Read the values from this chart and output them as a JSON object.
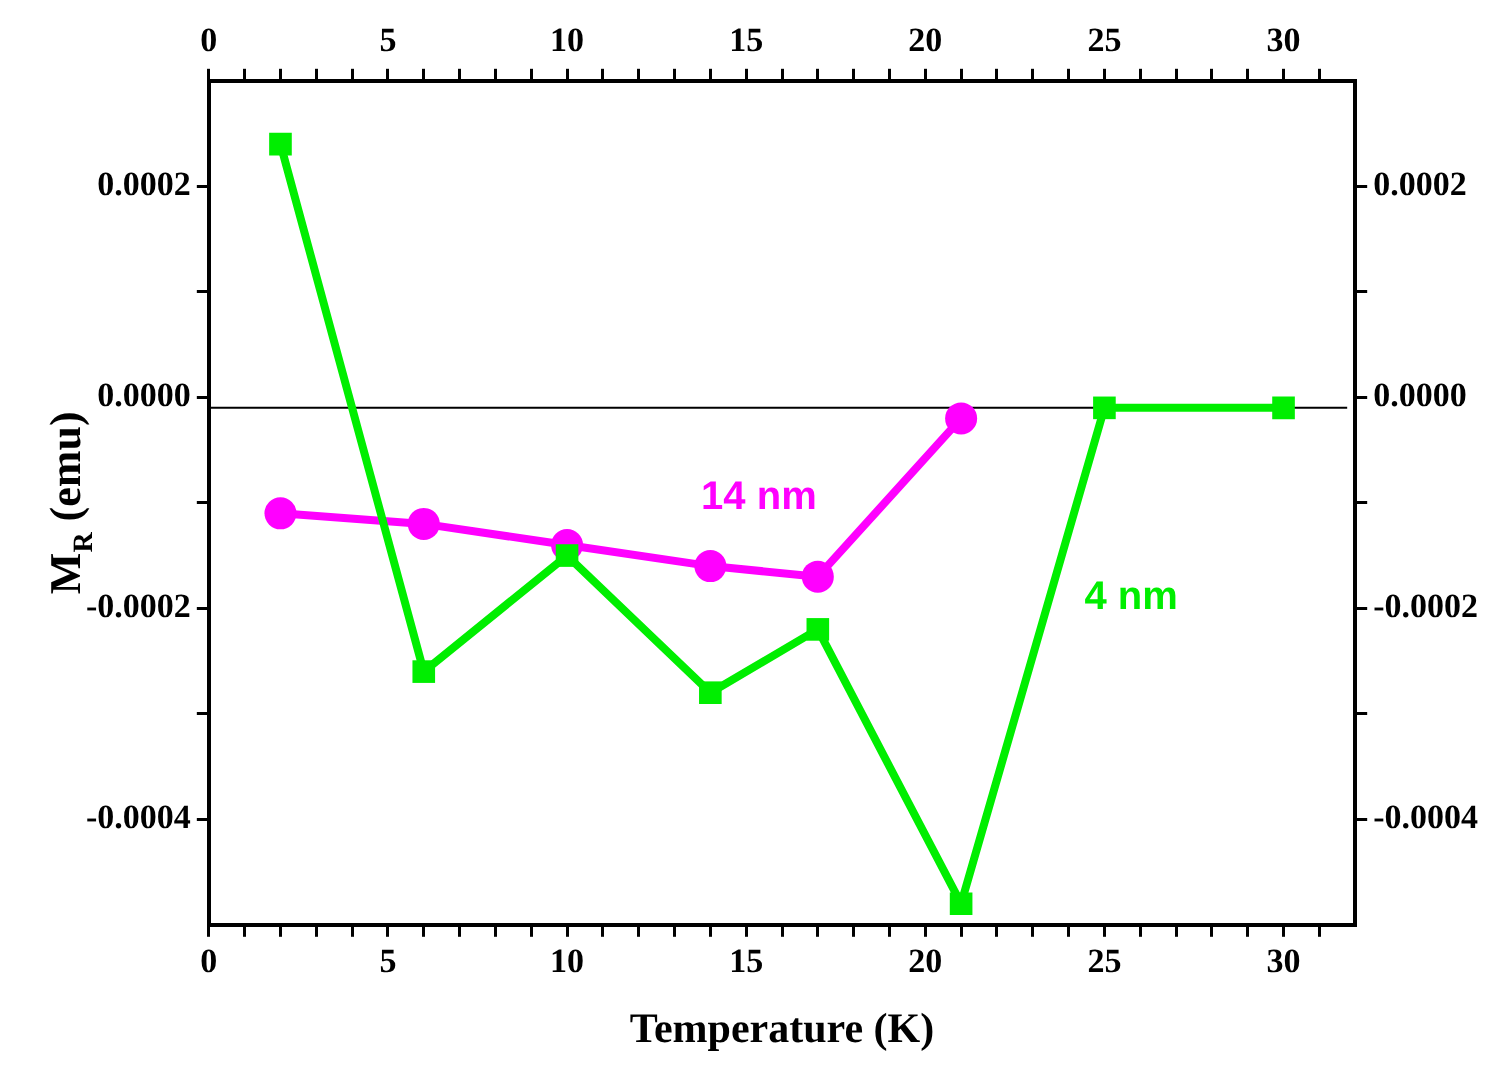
{
  "chart_data": {
    "type": "line",
    "xlabel": "Temperature (K)",
    "ylabel": "M$_{R}$ (emu)",
    "xlim": [
      0,
      32
    ],
    "xticks": [
      0,
      {
        "value": 1,
        "label": null
      },
      {
        "value": 2,
        "label": null
      },
      {
        "value": 3,
        "label": null
      },
      {
        "value": 4,
        "label": null
      },
      5,
      {
        "value": 6,
        "label": null
      },
      {
        "value": 7,
        "label": null
      },
      {
        "value": 8,
        "label": null
      },
      {
        "value": 9,
        "label": null
      },
      10,
      {
        "value": 11,
        "label": null
      },
      {
        "value": 12,
        "label": null
      },
      {
        "value": 13,
        "label": null
      },
      {
        "value": 14,
        "label": null
      },
      15,
      {
        "value": 16,
        "label": null
      },
      {
        "value": 17,
        "label": null
      },
      {
        "value": 18,
        "label": null
      },
      {
        "value": 19,
        "label": null
      },
      20,
      {
        "value": 21,
        "label": null
      },
      {
        "value": 22,
        "label": null
      },
      {
        "value": 23,
        "label": null
      },
      {
        "value": 24,
        "label": null
      },
      25,
      {
        "value": 26,
        "label": null
      },
      {
        "value": 27,
        "label": null
      },
      {
        "value": 28,
        "label": null
      },
      {
        "value": 29,
        "label": null
      },
      30,
      {
        "value": 31,
        "label": null
      }
    ],
    "x2lim": [
      0,
      32
    ],
    "x2ticks": [
      0,
      {
        "value": 1,
        "label": null
      },
      {
        "value": 2,
        "label": null
      },
      {
        "value": 3,
        "label": null
      },
      {
        "value": 4,
        "label": null
      },
      5,
      {
        "value": 6,
        "label": null
      },
      {
        "value": 7,
        "label": null
      },
      {
        "value": 8,
        "label": null
      },
      {
        "value": 9,
        "label": null
      },
      10,
      {
        "value": 11,
        "label": null
      },
      {
        "value": 12,
        "label": null
      },
      {
        "value": 13,
        "label": null
      },
      {
        "value": 14,
        "label": null
      },
      15,
      {
        "value": 16,
        "label": null
      },
      {
        "value": 17,
        "label": null
      },
      {
        "value": 18,
        "label": null
      },
      {
        "value": 19,
        "label": null
      },
      20,
      {
        "value": 21,
        "label": null
      },
      {
        "value": 22,
        "label": null
      },
      {
        "value": 23,
        "label": null
      },
      {
        "value": 24,
        "label": null
      },
      25,
      {
        "value": 26,
        "label": null
      },
      {
        "value": 27,
        "label": null
      },
      {
        "value": 28,
        "label": null
      },
      {
        "value": 29,
        "label": null
      },
      30,
      {
        "value": 31,
        "label": null
      }
    ],
    "ylim": [
      -0.0005,
      0.0003
    ],
    "yticks": [
      -0.0004,
      {
        "value": -0.0003,
        "label": null
      },
      -0.0002,
      {
        "value": -0.0001,
        "label": null
      },
      {
        "value": 0,
        "label": "0.0000"
      },
      {
        "value": 0.0001,
        "label": null
      },
      0.0002
    ],
    "y2lim": [
      -0.0005,
      0.0003
    ],
    "y2ticks": [
      -0.0004,
      {
        "value": -0.0003,
        "label": null
      },
      -0.0002,
      {
        "value": -0.0001,
        "label": null
      },
      {
        "value": 0,
        "label": "0.0000"
      },
      {
        "value": 0.0001,
        "label": null
      },
      0.0002
    ],
    "grid": false,
    "legend": false,
    "line_style": "solid",
    "ref_lines": [
      {
        "axis": "y",
        "value": -1e-05,
        "color": "#000000"
      }
    ],
    "series": [
      {
        "name": "4 nm",
        "color": "#00ee00",
        "marker": "square",
        "x": [
          2,
          6,
          10,
          14,
          17,
          21,
          25,
          30
        ],
        "values": [
          0.00024,
          -0.00026,
          -0.00015,
          -0.00028,
          -0.00022,
          -0.00048,
          -1e-05,
          -1e-05
        ]
      },
      {
        "name": "14 nm",
        "color": "#ff00ff",
        "marker": "circle",
        "x": [
          2,
          6,
          10,
          14,
          17,
          21
        ],
        "values": [
          -0.00011,
          -0.00012,
          -0.00014,
          -0.00016,
          -0.00017,
          -2e-05
        ]
      }
    ]
  }
}
